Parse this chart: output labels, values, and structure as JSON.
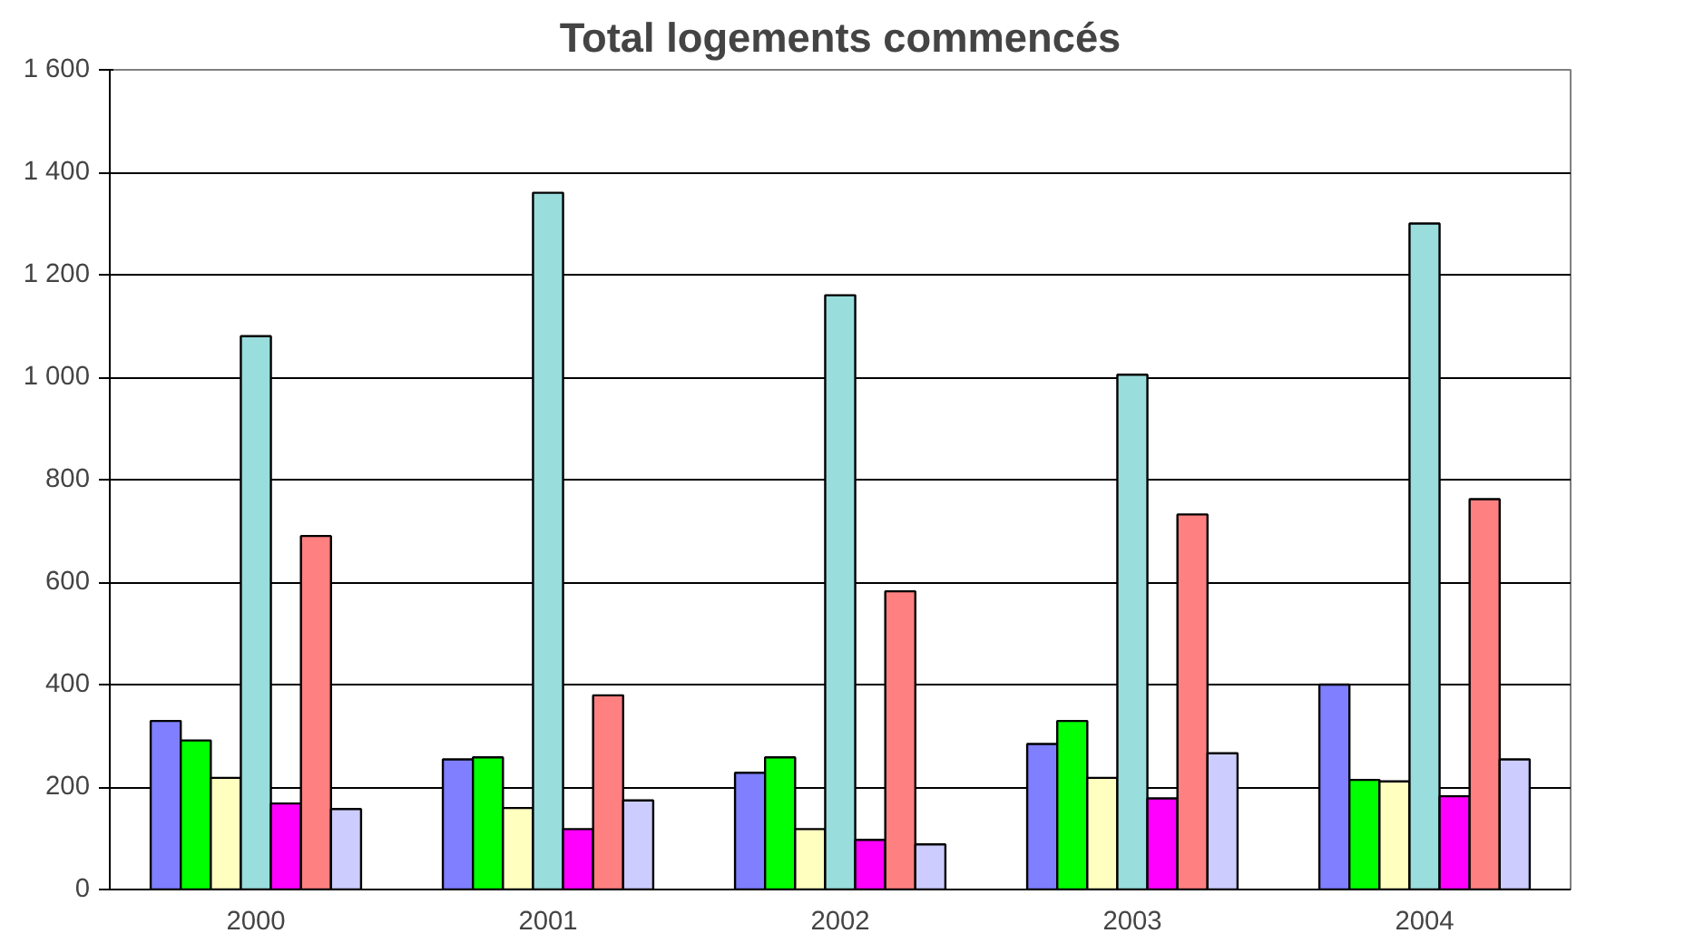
{
  "chart_data": {
    "type": "bar",
    "title": "Total logements commencés",
    "categories": [
      "2000",
      "2001",
      "2002",
      "2003",
      "2004"
    ],
    "series": [
      {
        "color": "#7f7fff",
        "values": [
          329,
          254,
          228,
          284,
          400
        ]
      },
      {
        "color": "#00ff00",
        "values": [
          291,
          258,
          258,
          329,
          214
        ]
      },
      {
        "color": "#ffffc0",
        "values": [
          218,
          159,
          118,
          218,
          211
        ]
      },
      {
        "color": "#99dddd",
        "values": [
          1080,
          1360,
          1160,
          1005,
          1300
        ]
      },
      {
        "color": "#ff00ff",
        "values": [
          168,
          118,
          97,
          178,
          182
        ]
      },
      {
        "color": "#ff8080",
        "values": [
          690,
          379,
          582,
          732,
          762
        ]
      },
      {
        "color": "#ccccff",
        "values": [
          157,
          174,
          88,
          266,
          254
        ]
      }
    ],
    "ylim": [
      0,
      1600
    ],
    "yticks": [
      0,
      200,
      400,
      600,
      800,
      {
        "value": 1000,
        "label": "1 000"
      },
      {
        "value": 1200,
        "label": "1 200"
      },
      {
        "value": 1400,
        "label": "1 400"
      },
      {
        "value": 1600,
        "label": "1 600"
      }
    ],
    "grid": "y"
  }
}
